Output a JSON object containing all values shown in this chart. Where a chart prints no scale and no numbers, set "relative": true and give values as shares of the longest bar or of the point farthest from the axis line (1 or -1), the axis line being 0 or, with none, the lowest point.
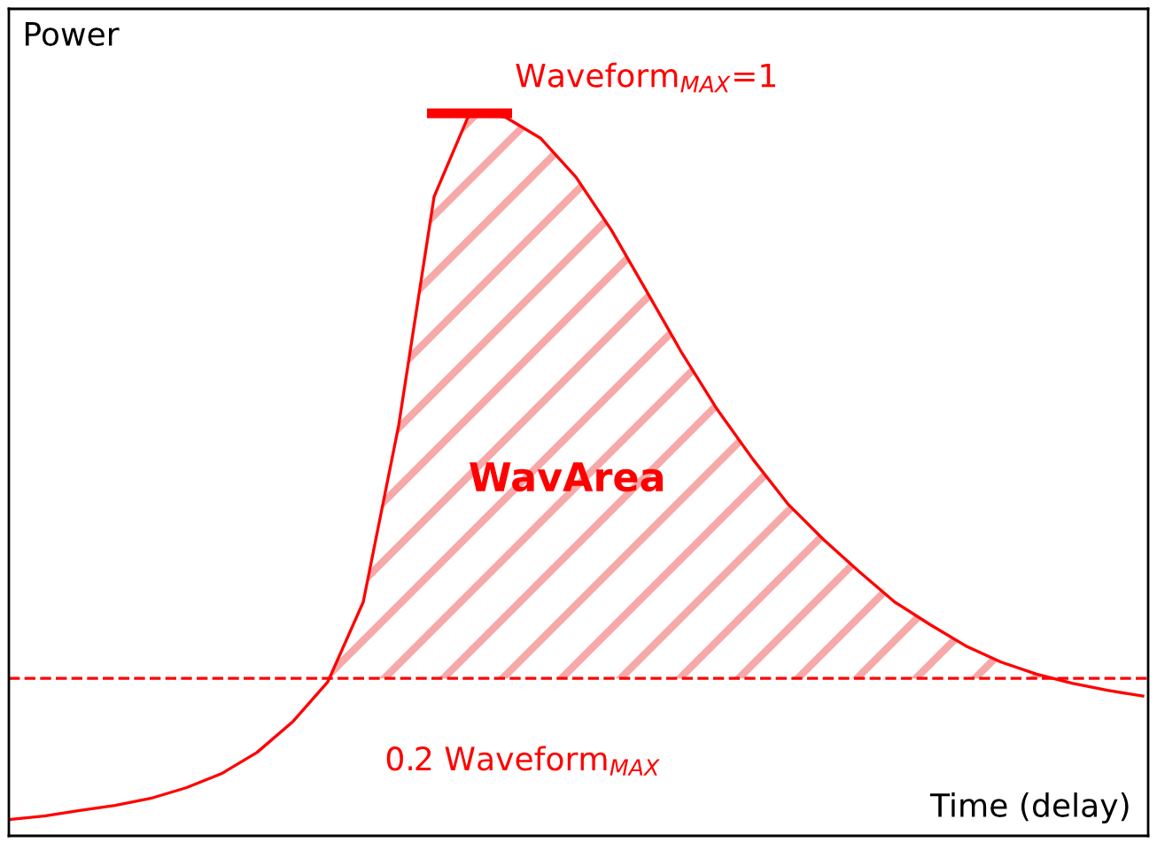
{
  "chart_data": {
    "type": "line",
    "relative": true,
    "categories": [
      null,
      null,
      null,
      null,
      null,
      null,
      null,
      null,
      null,
      null,
      null,
      null,
      null,
      null,
      null,
      null,
      null,
      null,
      null,
      null,
      null,
      null,
      null,
      null,
      null,
      null,
      null,
      null,
      null,
      null,
      null,
      null,
      null
    ],
    "series": [
      {
        "color": "#ff0000",
        "values": [
          0,
          0.005,
          0.013,
          0.02,
          0.03,
          0.045,
          0.065,
          0.095,
          0.138,
          0.195,
          0.308,
          0.558,
          0.882,
          1.0,
          0.995,
          0.965,
          0.91,
          0.835,
          0.748,
          0.66,
          0.58,
          0.51,
          0.446,
          0.396,
          0.351,
          0.308,
          0.276,
          0.246,
          0.223,
          0.206,
          0.193,
          0.183,
          0.175
        ]
      }
    ],
    "xlabel": "Time (delay)",
    "ylabel": "Power",
    "ref_lines": [
      {
        "axis": "y",
        "value": 0.2,
        "label": "0.2 Waveform$_{MAX}$",
        "color": "#ff0000",
        "line_style": "dashed"
      }
    ],
    "annotations": [
      "Waveform$_{MAX}$=1",
      "WavArea"
    ]
  }
}
